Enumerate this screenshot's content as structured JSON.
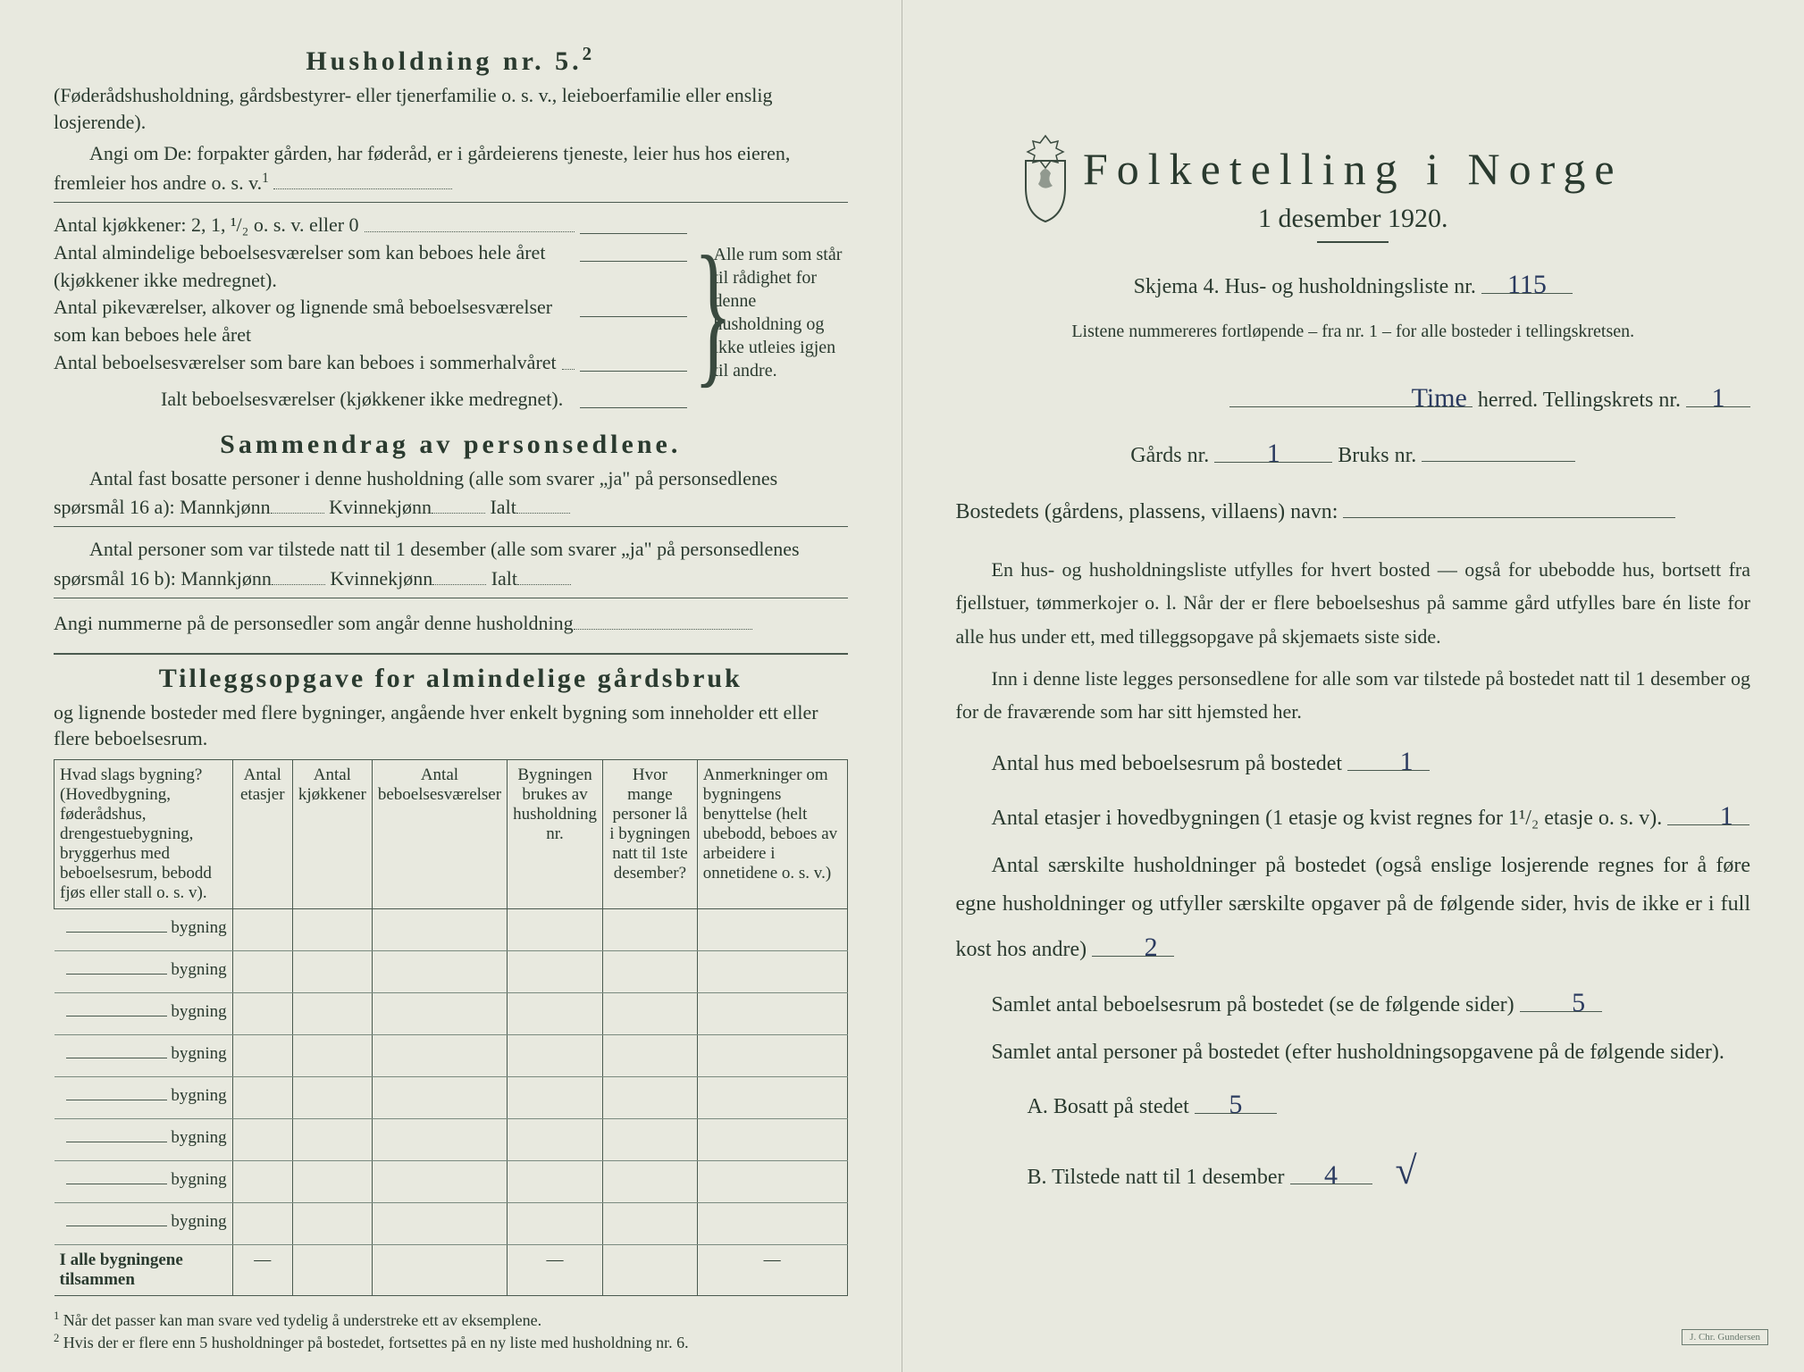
{
  "left": {
    "husholdning_title": "Husholdning nr. 5.",
    "husholdning_sup": "2",
    "husholdning_sub": "(Føderådshusholdning, gårdsbestyrer- eller tjenerfamilie o. s. v., leieboerfamilie eller enslig losjerende).",
    "angi_om_de": "Angi om De: forpakter gården, har føderåd, er i gårdeierens tjeneste, leier hus hos eieren, fremleier hos andre o. s. v.",
    "kjokkener": "Antal kjøkkener: 2, 1, ¹/₂ o. s. v. eller 0",
    "brace_items": [
      "Antal almindelige beboelsesværelser som kan beboes hele året (kjøkkener ikke medregnet).",
      "Antal pikeværelser, alkover og lignende små beboelsesværelser som kan beboes hele året",
      "Antal beboelsesværelser som bare kan beboes i sommerhalvåret"
    ],
    "brace_right": "Alle rum som står til rådighet for denne husholdning og ikke utleies igjen til andre.",
    "ialt": "Ialt beboelsesværelser (kjøkkener ikke medregnet).",
    "sammendrag_title": "Sammendrag av personsedlene.",
    "sammendrag_line1": "Antal fast bosatte personer i denne husholdning (alle som svarer „ja\" på personsedlenes spørsmål 16 a): Mannkjønn",
    "kvinnekjonn": "Kvinnekjønn",
    "ialt_label": "Ialt",
    "sammendrag_line2": "Antal personer som var tilstede natt til 1 desember (alle som svarer „ja\" på personsedlenes spørsmål 16 b): Mannkjønn",
    "angi_nummerne": "Angi nummerne på de personsedler som angår denne husholdning",
    "tillegg_title": "Tilleggsopgave for almindelige gårdsbruk",
    "tillegg_sub": "og lignende bosteder med flere bygninger, angående hver enkelt bygning som inneholder ett eller flere beboelsesrum.",
    "table": {
      "headers": [
        "Hvad slags bygning?\n(Hovedbygning, føderådshus, drengestuebygning, bryggerhus med beboelsesrum, bebodd fjøs eller stall o. s. v).",
        "Antal etasjer",
        "Antal kjøkkener",
        "Antal beboelsesværelser",
        "Bygningen brukes av husholdning nr.",
        "Hvor mange personer lå i bygningen natt til 1ste desember?",
        "Anmerkninger om bygningens benyttelse (helt ubebodd, beboes av arbeidere i onnetidene o. s. v.)"
      ],
      "row_label": "bygning",
      "row_count": 8,
      "footer": "I alle bygningene tilsammen"
    },
    "footnote1_num": "1",
    "footnote1": "Når det passer kan man svare ved tydelig å understreke ett av eksemplene.",
    "footnote2_num": "2",
    "footnote2": "Hvis der er flere enn 5 husholdninger på bostedet, fortsettes på en ny liste med husholdning nr. 6."
  },
  "right": {
    "title": "Folketelling i Norge",
    "subtitle": "1 desember 1920.",
    "skjema_line_a": "Skjema 4.  Hus- og husholdningsliste nr.",
    "liste_nr": "115",
    "listene_note": "Listene nummereres fortløpende – fra nr. 1 – for alle bosteder i tellingskretsen.",
    "herred_value": "Time",
    "herred_label": "herred.   Tellingskrets nr.",
    "tellingskrets_nr": "1",
    "gards_label": "Gårds nr.",
    "gards_nr": "1",
    "bruks_label": "Bruks nr.",
    "bruks_nr": "",
    "bosted_label": "Bostedets (gårdens, plassens, villaens) navn:",
    "para1": "En hus- og husholdningsliste utfylles for hvert bosted — også for ubebodde hus, bortsett fra fjellstuer, tømmerkojer o. l.  Når der er flere beboelseshus på samme gård utfylles bare én liste for alle hus under ett, med tilleggsopgave på skjemaets siste side.",
    "para2": "Inn i denne liste legges personsedlene for alle som var tilstede på bostedet natt til 1 desember og for de fraværende som har sitt hjemsted her.",
    "q1": "Antal hus med beboelsesrum på bostedet",
    "q1_val": "1",
    "q2a": "Antal etasjer i hovedbygningen (1 etasje og kvist regnes for 1¹/₂ etasje o. s. v).",
    "q2_val": "1",
    "q3": "Antal særskilte husholdninger på bostedet (også enslige losjerende regnes for å føre egne husholdninger og utfyller særskilte opgaver på de følgende sider, hvis de ikke er i full kost hos andre)",
    "q3_val": "2",
    "q4": "Samlet antal beboelsesrum på bostedet (se de følgende sider)",
    "q4_val": "5",
    "q5": "Samlet antal personer på bostedet (efter husholdningsopgavene på de følgende sider).",
    "qA": "A.  Bosatt på stedet",
    "qA_val": "5",
    "qB": "B.  Tilstede natt til 1 desember",
    "qB_val": "4",
    "stamp": "J. Chr. Gundersen"
  },
  "colors": {
    "paper": "#e8e9df",
    "ink": "#2a3a2f",
    "hand": "#2a3a5f"
  }
}
